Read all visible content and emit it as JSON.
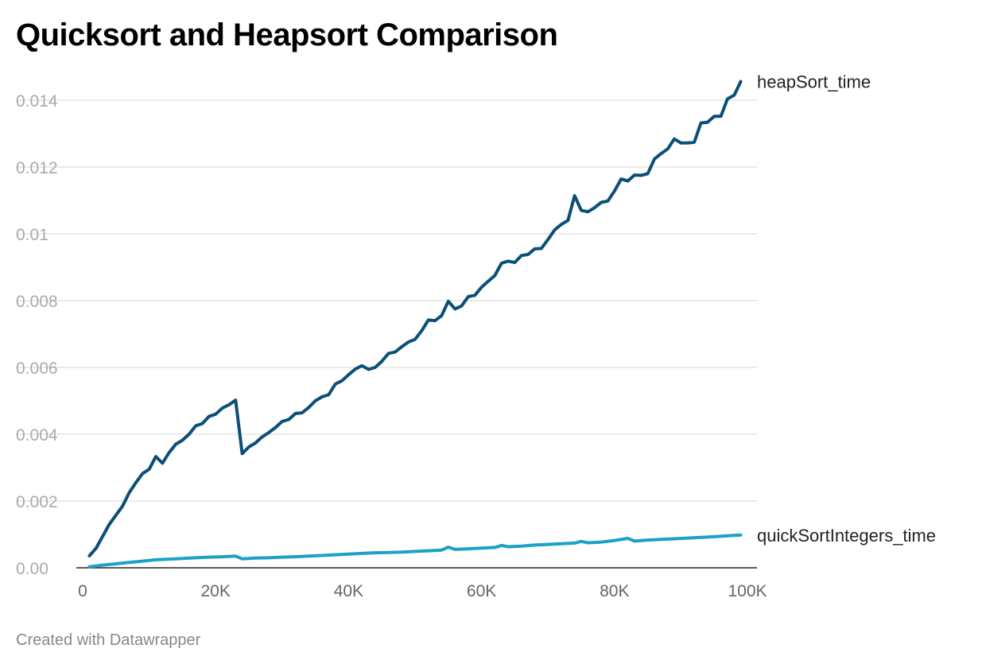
{
  "title": "Quicksort and Heapsort Comparison",
  "footer": "Created with Datawrapper",
  "colors": {
    "heapsort": "#0b4f78",
    "quicksort": "#1da1c7",
    "grid": "#e3e3e3",
    "baseline": "#222222"
  },
  "chart_data": {
    "type": "line",
    "title": "Quicksort and Heapsort Comparison",
    "xlabel": "",
    "ylabel": "",
    "xlim": [
      0,
      100000
    ],
    "ylim": [
      0,
      0.015
    ],
    "grid": true,
    "legend": "direct labels at line ends (right)",
    "x_ticks": [
      0,
      20000,
      40000,
      60000,
      80000,
      100000
    ],
    "x_tick_labels": [
      "0",
      "20K",
      "40K",
      "60K",
      "80K",
      "100K"
    ],
    "y_ticks": [
      0,
      0.002,
      0.004,
      0.006,
      0.008,
      0.01,
      0.012,
      0.014
    ],
    "y_tick_labels": [
      "0.00",
      "0.002",
      "0.004",
      "0.006",
      "0.008",
      "0.01",
      "0.012",
      "0.014"
    ],
    "series": [
      {
        "name": "heapSort_time",
        "points": [
          [
            1000,
            0.00036
          ],
          [
            2000,
            0.00058
          ],
          [
            4000,
            0.0013
          ],
          [
            6000,
            0.00185
          ],
          [
            7000,
            0.00225
          ],
          [
            8000,
            0.00255
          ],
          [
            9000,
            0.00282
          ],
          [
            10000,
            0.00295
          ],
          [
            11000,
            0.00333
          ],
          [
            12000,
            0.00313
          ],
          [
            13000,
            0.00345
          ],
          [
            14000,
            0.0037
          ],
          [
            15000,
            0.00382
          ],
          [
            16000,
            0.004
          ],
          [
            17000,
            0.00425
          ],
          [
            18000,
            0.00432
          ],
          [
            19000,
            0.00453
          ],
          [
            20000,
            0.0046
          ],
          [
            21000,
            0.00478
          ],
          [
            22000,
            0.00488
          ],
          [
            23000,
            0.00502
          ],
          [
            24000,
            0.00342
          ],
          [
            25000,
            0.00362
          ],
          [
            26000,
            0.00374
          ],
          [
            27000,
            0.00392
          ],
          [
            28000,
            0.00405
          ],
          [
            29000,
            0.0042
          ],
          [
            30000,
            0.00438
          ],
          [
            31000,
            0.00444
          ],
          [
            32000,
            0.00462
          ],
          [
            33000,
            0.00464
          ],
          [
            34000,
            0.0048
          ],
          [
            35000,
            0.005
          ],
          [
            36000,
            0.00512
          ],
          [
            37000,
            0.00518
          ],
          [
            38000,
            0.0055
          ],
          [
            39000,
            0.0056
          ],
          [
            40000,
            0.00578
          ],
          [
            41000,
            0.00595
          ],
          [
            42000,
            0.00605
          ],
          [
            43000,
            0.00594
          ],
          [
            44000,
            0.006
          ],
          [
            45000,
            0.00618
          ],
          [
            46000,
            0.00642
          ],
          [
            47000,
            0.00646
          ],
          [
            48000,
            0.00662
          ],
          [
            49000,
            0.00676
          ],
          [
            50000,
            0.00684
          ],
          [
            51000,
            0.0071
          ],
          [
            52000,
            0.00742
          ],
          [
            53000,
            0.0074
          ],
          [
            54000,
            0.00755
          ],
          [
            55000,
            0.00798
          ],
          [
            56000,
            0.00775
          ],
          [
            57000,
            0.00784
          ],
          [
            58000,
            0.00812
          ],
          [
            59000,
            0.00816
          ],
          [
            60000,
            0.0084
          ],
          [
            61000,
            0.00858
          ],
          [
            62000,
            0.00875
          ],
          [
            63000,
            0.00912
          ],
          [
            64000,
            0.00918
          ],
          [
            65000,
            0.00914
          ],
          [
            66000,
            0.00935
          ],
          [
            67000,
            0.00938
          ],
          [
            68000,
            0.00955
          ],
          [
            69000,
            0.00956
          ],
          [
            70000,
            0.00983
          ],
          [
            71000,
            0.01012
          ],
          [
            72000,
            0.01028
          ],
          [
            73000,
            0.0104
          ],
          [
            74000,
            0.01114
          ],
          [
            75000,
            0.0107
          ],
          [
            76000,
            0.01066
          ],
          [
            77000,
            0.01078
          ],
          [
            78000,
            0.01094
          ],
          [
            79000,
            0.01098
          ],
          [
            80000,
            0.01128
          ],
          [
            81000,
            0.01164
          ],
          [
            82000,
            0.01158
          ],
          [
            83000,
            0.01176
          ],
          [
            84000,
            0.01175
          ],
          [
            85000,
            0.0118
          ],
          [
            86000,
            0.01224
          ],
          [
            87000,
            0.0124
          ],
          [
            88000,
            0.01254
          ],
          [
            89000,
            0.01284
          ],
          [
            90000,
            0.01272
          ],
          [
            91000,
            0.01272
          ],
          [
            92000,
            0.01274
          ],
          [
            93000,
            0.01332
          ],
          [
            94000,
            0.01334
          ],
          [
            95000,
            0.01352
          ],
          [
            96000,
            0.01352
          ],
          [
            97000,
            0.01404
          ],
          [
            98000,
            0.01415
          ],
          [
            99000,
            0.01456
          ]
        ]
      },
      {
        "name": "quickSortIntegers_time",
        "points": [
          [
            1000,
            3e-05
          ],
          [
            3000,
            8e-05
          ],
          [
            5000,
            0.00012
          ],
          [
            7000,
            0.00016
          ],
          [
            9000,
            0.0002
          ],
          [
            11000,
            0.00024
          ],
          [
            13000,
            0.00026
          ],
          [
            15000,
            0.00028
          ],
          [
            17000,
            0.0003
          ],
          [
            19000,
            0.00032
          ],
          [
            21000,
            0.00033
          ],
          [
            23000,
            0.00035
          ],
          [
            24000,
            0.00027
          ],
          [
            26000,
            0.00029
          ],
          [
            28000,
            0.0003
          ],
          [
            30000,
            0.00032
          ],
          [
            32000,
            0.00033
          ],
          [
            34000,
            0.00035
          ],
          [
            36000,
            0.00037
          ],
          [
            38000,
            0.00039
          ],
          [
            40000,
            0.00041
          ],
          [
            42000,
            0.00043
          ],
          [
            44000,
            0.00045
          ],
          [
            46000,
            0.00046
          ],
          [
            48000,
            0.00047
          ],
          [
            50000,
            0.00049
          ],
          [
            52000,
            0.00051
          ],
          [
            54000,
            0.00053
          ],
          [
            55000,
            0.00062
          ],
          [
            56000,
            0.00055
          ],
          [
            58000,
            0.00057
          ],
          [
            60000,
            0.00059
          ],
          [
            62000,
            0.00061
          ],
          [
            63000,
            0.00067
          ],
          [
            64000,
            0.00063
          ],
          [
            66000,
            0.00065
          ],
          [
            68000,
            0.00068
          ],
          [
            70000,
            0.0007
          ],
          [
            72000,
            0.00072
          ],
          [
            74000,
            0.00074
          ],
          [
            75000,
            0.00079
          ],
          [
            76000,
            0.00075
          ],
          [
            78000,
            0.00077
          ],
          [
            80000,
            0.00082
          ],
          [
            82000,
            0.00088
          ],
          [
            83000,
            0.0008
          ],
          [
            85000,
            0.00083
          ],
          [
            87000,
            0.00085
          ],
          [
            89000,
            0.00087
          ],
          [
            91000,
            0.00089
          ],
          [
            93000,
            0.00091
          ],
          [
            95000,
            0.00093
          ],
          [
            97000,
            0.00096
          ],
          [
            99000,
            0.00098
          ]
        ]
      }
    ]
  }
}
